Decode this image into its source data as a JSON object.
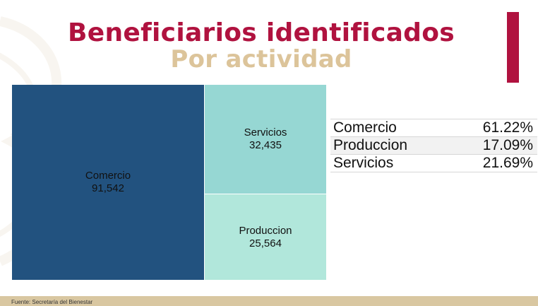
{
  "title": "Beneficiarios identificados",
  "subtitle": "Por actividad",
  "source": "Fuente: Secretaría del Bienestar",
  "colors": {
    "title": "#b0123f",
    "subtitle": "#dcc49a",
    "accent": "#b0123f",
    "footer": "#d9c7a1"
  },
  "chart_data": {
    "type": "treemap",
    "items": [
      {
        "label": "Comercio",
        "value": 91542,
        "display": "91,542",
        "color": "#22527f"
      },
      {
        "label": "Servicios",
        "value": 32435,
        "display": "32,435",
        "color": "#96d7d3"
      },
      {
        "label": "Produccion",
        "value": 25564,
        "display": "25,564",
        "color": "#b1e7db"
      }
    ]
  },
  "table": [
    {
      "label": "Comercio",
      "pct": "61.22%"
    },
    {
      "label": "Produccion",
      "pct": "17.09%"
    },
    {
      "label": "Servicios",
      "pct": "21.69%"
    }
  ]
}
